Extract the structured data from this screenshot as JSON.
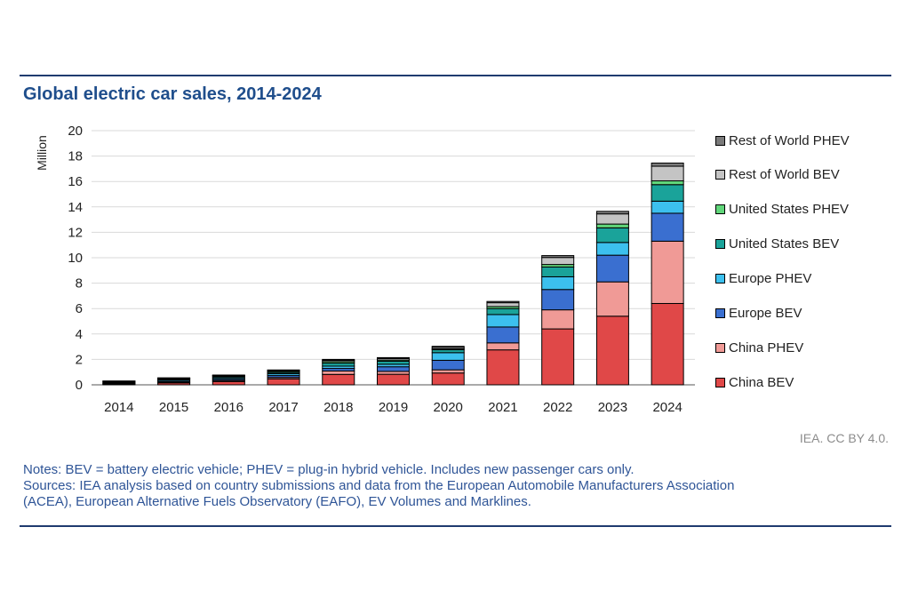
{
  "title": "Global electric car sales, 2014-2024",
  "credit": "IEA. CC BY 4.0.",
  "notes": "Notes: BEV = battery electric vehicle; PHEV = plug-in hybrid vehicle. Includes new passenger cars only.",
  "sources": [
    "Sources: IEA analysis based on country submissions and data from the European Automobile Manufacturers Association",
    "(ACEA), European Alternative Fuels Observatory (EAFO), EV Volumes and Marklines."
  ],
  "colors": {
    "China BEV": "#e04848",
    "China PHEV": "#f09a96",
    "Europe BEV": "#3a6fd0",
    "Europe PHEV": "#3cc0ee",
    "United States BEV": "#1aa39a",
    "United States PHEV": "#60d67a",
    "Rest of World BEV": "#c4c4c4",
    "Rest of World PHEV": "#7a7a7a",
    "title": "#1f4e8c",
    "notes": "#2f5597"
  },
  "chart_data": {
    "type": "bar",
    "stacked": true,
    "title": "Global electric car sales, 2014-2024",
    "xlabel": "",
    "ylabel": "Million",
    "ylim": [
      0,
      20
    ],
    "yticks": [
      0,
      2,
      4,
      6,
      8,
      10,
      12,
      14,
      16,
      18,
      20
    ],
    "grid": true,
    "legend_position": "right",
    "categories": [
      "2014",
      "2015",
      "2016",
      "2017",
      "2018",
      "2019",
      "2020",
      "2021",
      "2022",
      "2023",
      "2024"
    ],
    "series": [
      {
        "name": "China BEV",
        "values": [
          0.05,
          0.15,
          0.26,
          0.47,
          0.82,
          0.83,
          0.93,
          2.75,
          4.4,
          5.4,
          6.4
        ]
      },
      {
        "name": "China PHEV",
        "values": [
          0.02,
          0.06,
          0.08,
          0.11,
          0.27,
          0.23,
          0.25,
          0.55,
          1.5,
          2.7,
          4.9
        ]
      },
      {
        "name": "Europe BEV",
        "values": [
          0.04,
          0.08,
          0.1,
          0.15,
          0.2,
          0.36,
          0.75,
          1.25,
          1.6,
          2.1,
          2.2
        ]
      },
      {
        "name": "Europe PHEV",
        "values": [
          0.05,
          0.1,
          0.11,
          0.14,
          0.18,
          0.2,
          0.6,
          0.98,
          1.0,
          1.0,
          0.95
        ]
      },
      {
        "name": "United States BEV",
        "values": [
          0.06,
          0.07,
          0.09,
          0.1,
          0.24,
          0.24,
          0.23,
          0.47,
          0.77,
          1.15,
          1.3
        ]
      },
      {
        "name": "United States PHEV",
        "values": [
          0.05,
          0.04,
          0.07,
          0.09,
          0.12,
          0.09,
          0.07,
          0.16,
          0.2,
          0.3,
          0.3
        ]
      },
      {
        "name": "Rest of World BEV",
        "values": [
          0.02,
          0.03,
          0.03,
          0.06,
          0.1,
          0.12,
          0.12,
          0.3,
          0.55,
          0.8,
          1.15
        ]
      },
      {
        "name": "Rest of World PHEV",
        "values": [
          0.01,
          0.02,
          0.03,
          0.05,
          0.07,
          0.07,
          0.08,
          0.1,
          0.15,
          0.2,
          0.25
        ]
      }
    ]
  }
}
